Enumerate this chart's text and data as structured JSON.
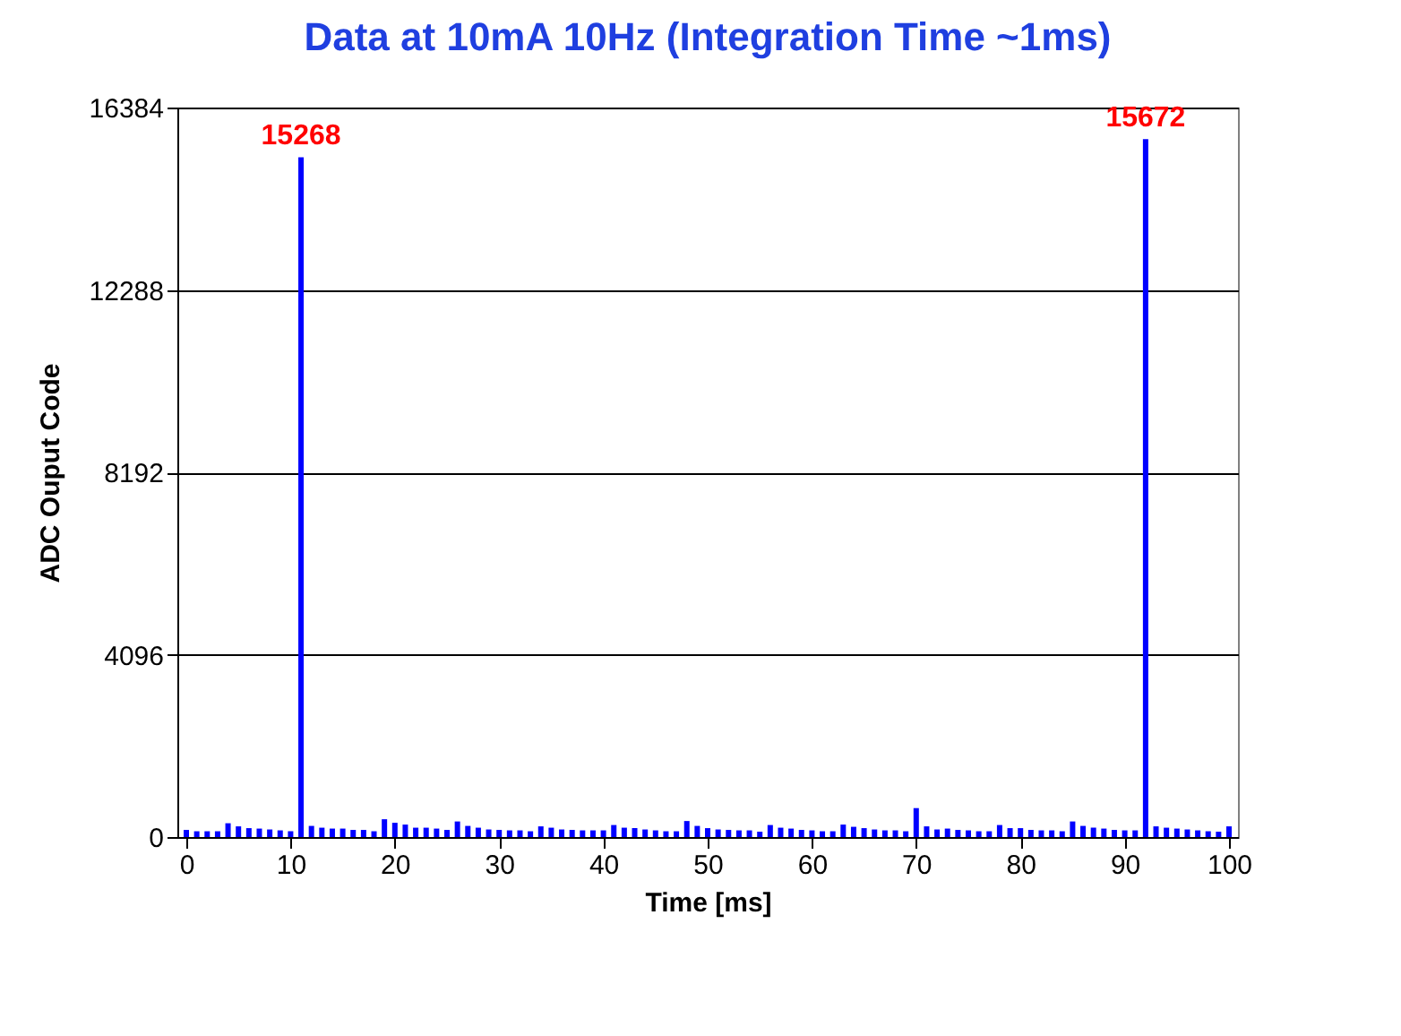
{
  "chart_data": {
    "type": "bar",
    "title": "Data at 10mA 10Hz (Integration Time ~1ms)",
    "xlabel": "Time [ms]",
    "ylabel": "ADC Ouput Code",
    "x": [
      0,
      1,
      2,
      3,
      4,
      5,
      6,
      7,
      8,
      9,
      10,
      11,
      12,
      13,
      14,
      15,
      16,
      17,
      18,
      19,
      20,
      21,
      22,
      23,
      24,
      25,
      26,
      27,
      28,
      29,
      30,
      31,
      32,
      33,
      34,
      35,
      36,
      37,
      38,
      39,
      40,
      41,
      42,
      43,
      44,
      45,
      46,
      47,
      48,
      49,
      50,
      51,
      52,
      53,
      54,
      55,
      56,
      57,
      58,
      59,
      60,
      61,
      62,
      63,
      64,
      65,
      66,
      67,
      68,
      69,
      70,
      71,
      72,
      73,
      74,
      75,
      76,
      77,
      78,
      79,
      80,
      81,
      82,
      83,
      84,
      85,
      86,
      87,
      88,
      89,
      90,
      91,
      92,
      93,
      94,
      95,
      96,
      97,
      98,
      99,
      100
    ],
    "values": [
      160,
      130,
      130,
      130,
      310,
      240,
      200,
      190,
      170,
      150,
      130,
      15268,
      250,
      210,
      190,
      190,
      160,
      160,
      130,
      400,
      320,
      280,
      210,
      210,
      190,
      160,
      350,
      250,
      210,
      170,
      160,
      150,
      150,
      130,
      240,
      210,
      170,
      160,
      150,
      150,
      150,
      270,
      210,
      200,
      170,
      150,
      130,
      130,
      360,
      250,
      200,
      170,
      160,
      150,
      150,
      120,
      270,
      210,
      190,
      160,
      150,
      130,
      130,
      280,
      230,
      200,
      170,
      150,
      150,
      130,
      650,
      240,
      170,
      190,
      160,
      150,
      130,
      130,
      270,
      200,
      200,
      160,
      150,
      150,
      130,
      350,
      250,
      210,
      190,
      160,
      150,
      150,
      15672,
      240,
      210,
      190,
      170,
      150,
      130,
      120,
      240
    ],
    "value_labels": [
      null,
      null,
      null,
      null,
      null,
      null,
      null,
      null,
      null,
      null,
      null,
      "15268",
      null,
      null,
      null,
      null,
      null,
      null,
      null,
      null,
      null,
      null,
      null,
      null,
      null,
      null,
      null,
      null,
      null,
      null,
      null,
      null,
      null,
      null,
      null,
      null,
      null,
      null,
      null,
      null,
      null,
      null,
      null,
      null,
      null,
      null,
      null,
      null,
      null,
      null,
      null,
      null,
      null,
      null,
      null,
      null,
      null,
      null,
      null,
      null,
      null,
      null,
      null,
      null,
      null,
      null,
      null,
      null,
      null,
      null,
      null,
      null,
      null,
      null,
      null,
      null,
      null,
      null,
      null,
      null,
      null,
      null,
      null,
      null,
      null,
      null,
      null,
      null,
      null,
      null,
      null,
      null,
      "15672",
      null,
      null,
      null,
      null,
      null,
      null,
      null,
      null
    ],
    "color": "#0000ff",
    "xlim": [
      0,
      100
    ],
    "xticks": [
      0,
      10,
      20,
      30,
      40,
      50,
      60,
      70,
      80,
      90,
      100
    ],
    "ylim": [
      0,
      16384
    ],
    "yticks": [
      0,
      4096,
      8192,
      12288,
      16384
    ],
    "grid": "y"
  }
}
